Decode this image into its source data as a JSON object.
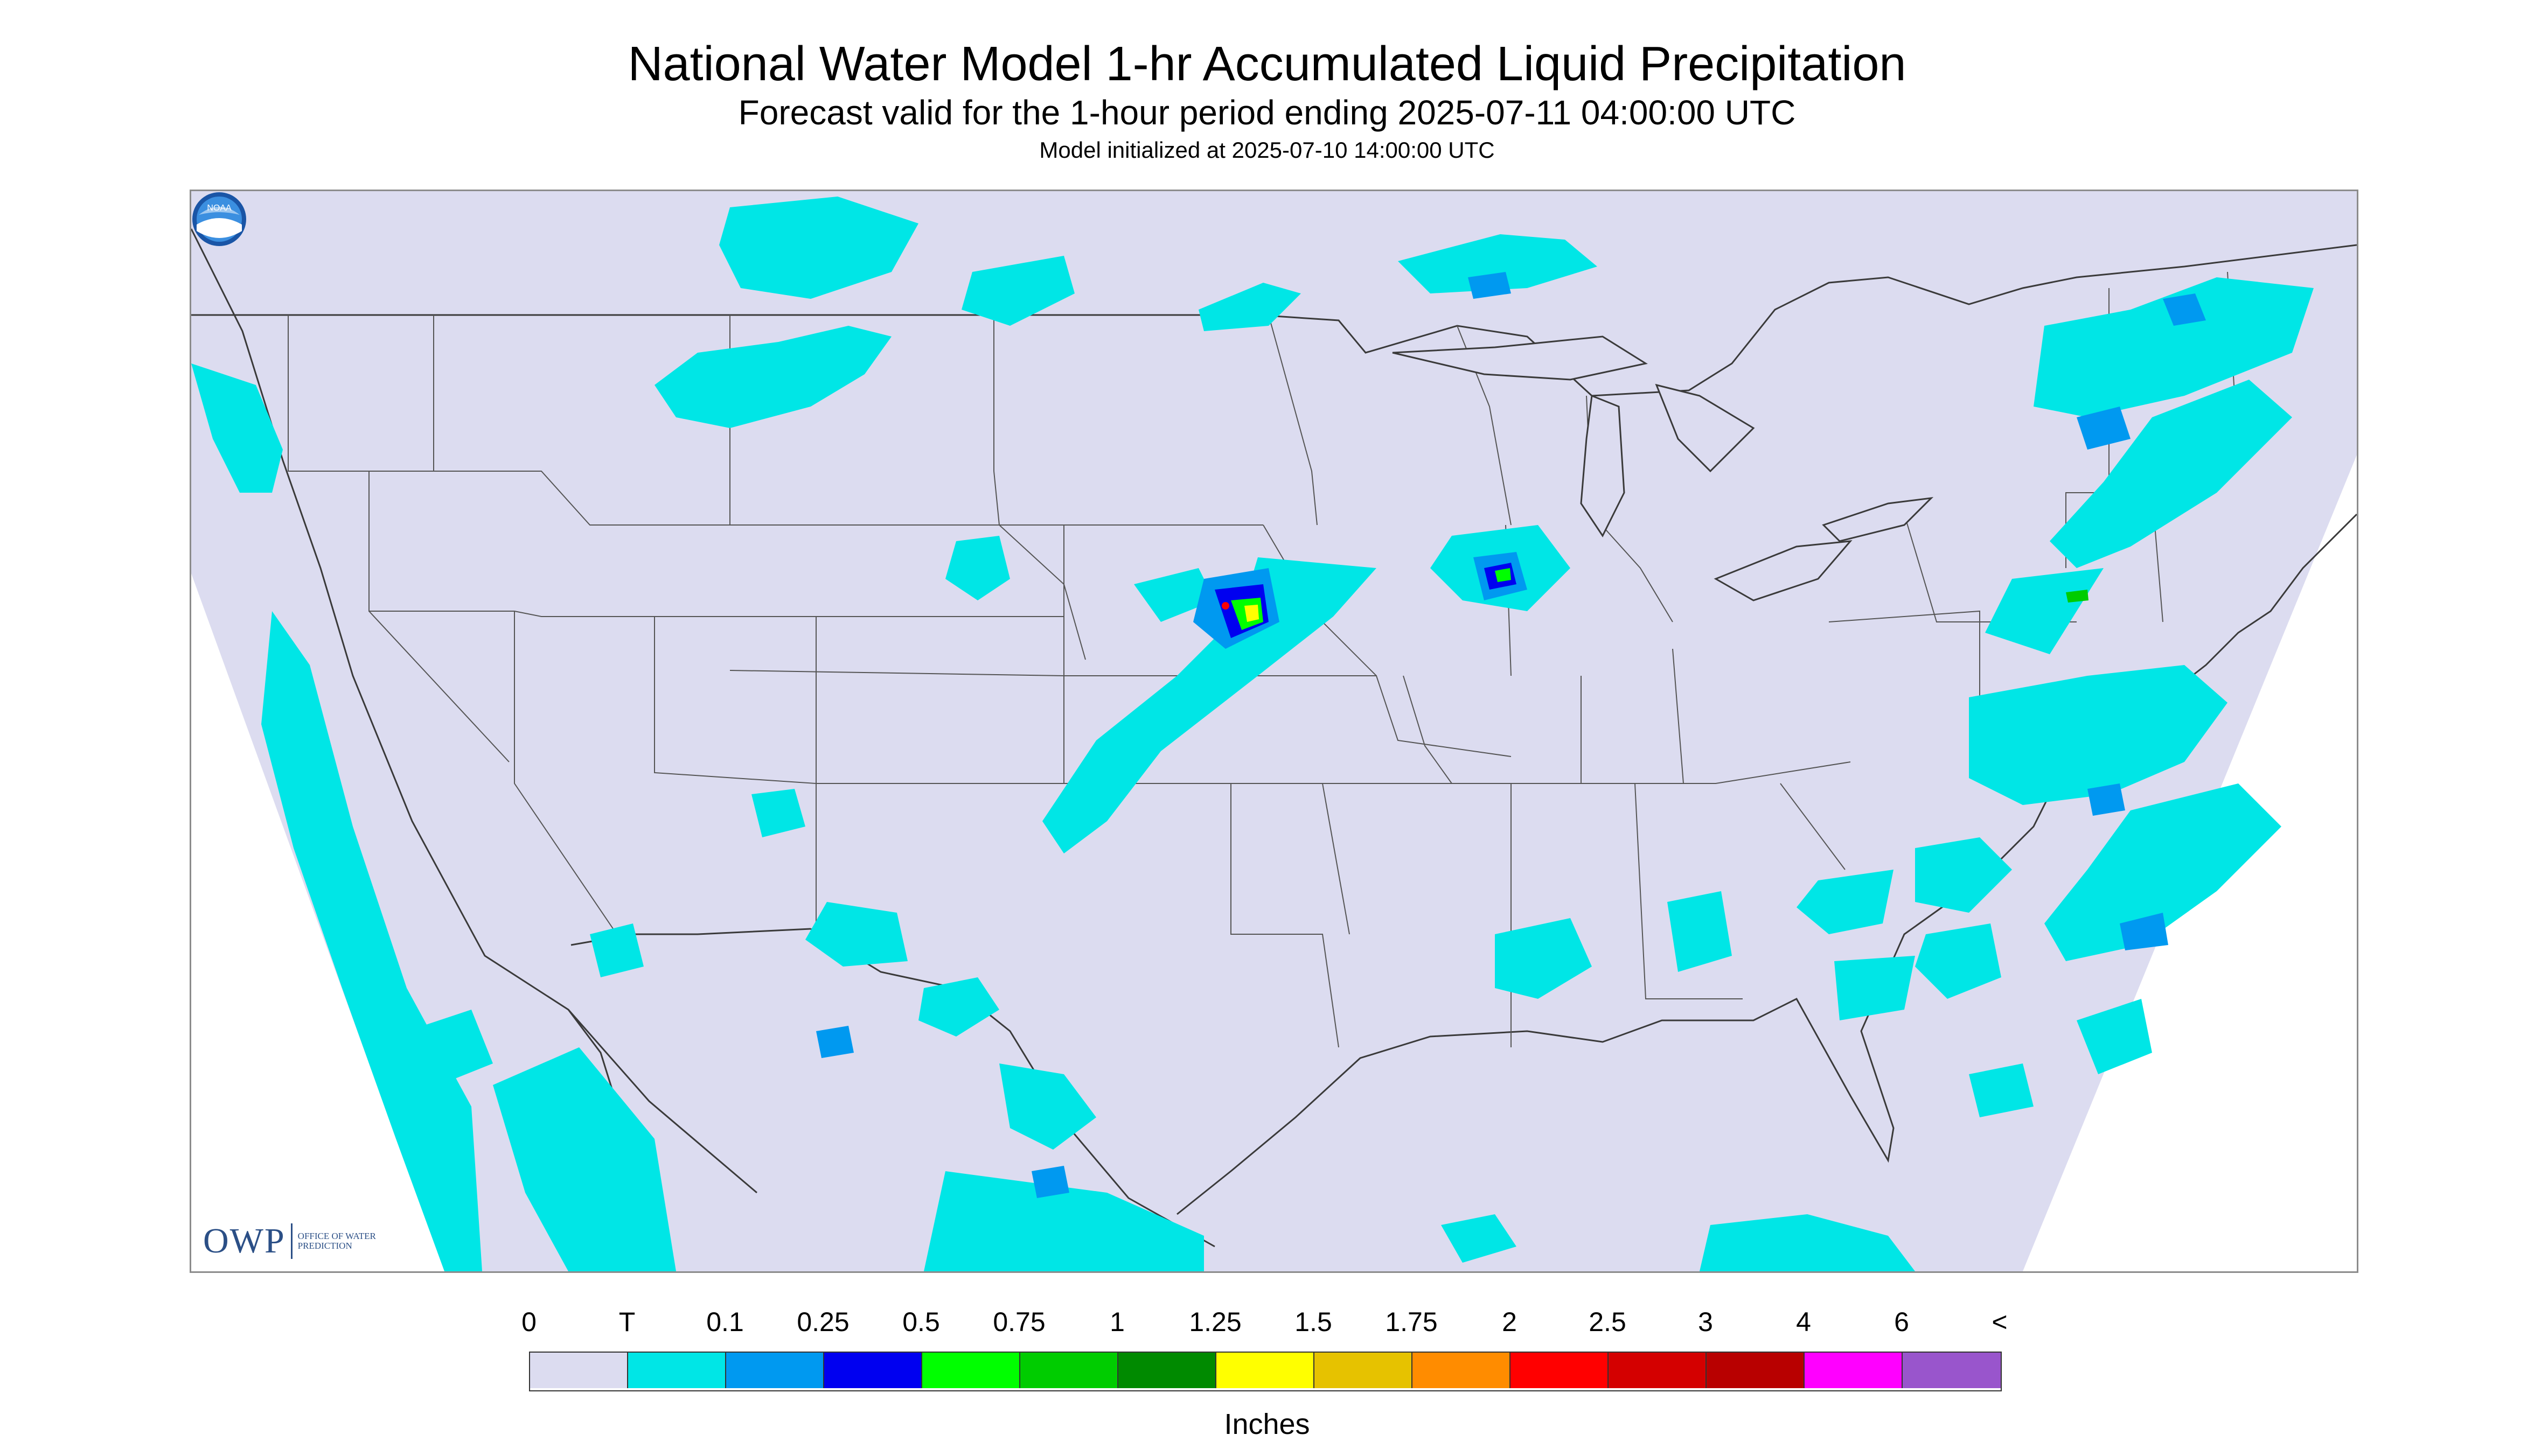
{
  "header": {
    "title": "National Water Model 1-hr Accumulated Liquid Precipitation",
    "subtitle": "Forecast valid for the 1-hour period ending 2025-07-11 04:00:00 UTC",
    "init_line": "Model initialized at 2025-07-10 14:00:00 UTC"
  },
  "logos": {
    "owp_word": "OWP",
    "owp_sub": "OFFICE OF WATER PREDICTION",
    "noaa_text": "NOAA"
  },
  "legend": {
    "ticks": [
      "0",
      "T",
      "0.1",
      "0.25",
      "0.5",
      "0.75",
      "1",
      "1.25",
      "1.5",
      "1.75",
      "2",
      "2.5",
      "3",
      "4",
      "6",
      "<"
    ],
    "colors": [
      "#dcdcf0",
      "#00e6e6",
      "#0099f0",
      "#0000f0",
      "#00ff00",
      "#00cc00",
      "#008a00",
      "#ffff00",
      "#e6c200",
      "#ff8c00",
      "#ff0000",
      "#d40000",
      "#b80000",
      "#ff00ff",
      "#9955cc"
    ],
    "units": "Inches"
  },
  "map_colors": {
    "domain": "#dcdcf0",
    "outside": "#ffffff",
    "boundary": "#3a3a3a",
    "light_rain": "#00e6e6",
    "moderate_rain": "#0099f0",
    "heavy_rain": "#0000f0",
    "very_heavy_green": "#00ff00",
    "intense_yellow": "#ffff00",
    "extreme_red": "#ff0000"
  }
}
